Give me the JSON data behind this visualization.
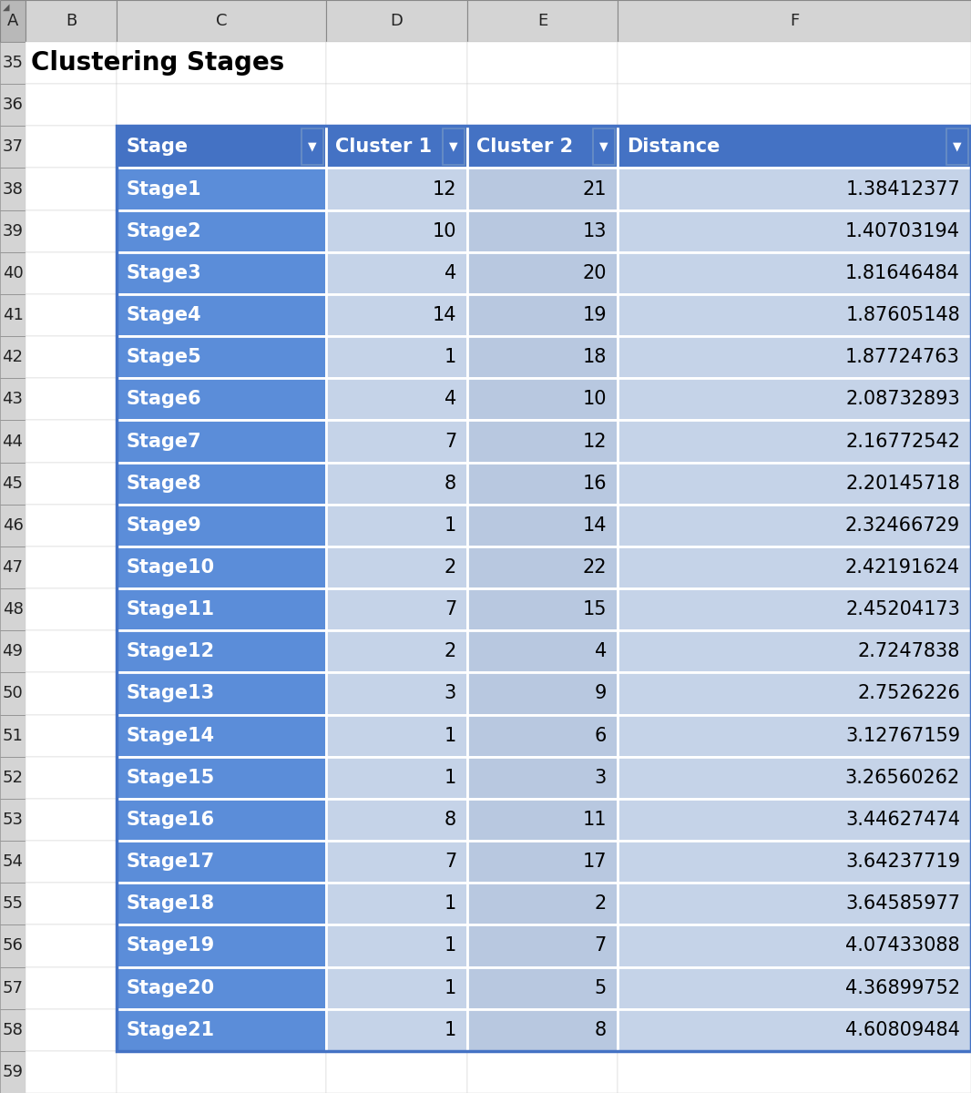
{
  "title": "Clustering Stages",
  "col_headers": [
    "Stage",
    "Cluster 1",
    "Cluster 2",
    "Distance"
  ],
  "rows": [
    [
      "Stage1",
      "12",
      "21",
      "1.38412377"
    ],
    [
      "Stage2",
      "10",
      "13",
      "1.40703194"
    ],
    [
      "Stage3",
      "4",
      "20",
      "1.81646484"
    ],
    [
      "Stage4",
      "14",
      "19",
      "1.87605148"
    ],
    [
      "Stage5",
      "1",
      "18",
      "1.87724763"
    ],
    [
      "Stage6",
      "4",
      "10",
      "2.08732893"
    ],
    [
      "Stage7",
      "7",
      "12",
      "2.16772542"
    ],
    [
      "Stage8",
      "8",
      "16",
      "2.20145718"
    ],
    [
      "Stage9",
      "1",
      "14",
      "2.32466729"
    ],
    [
      "Stage10",
      "2",
      "22",
      "2.42191624"
    ],
    [
      "Stage11",
      "7",
      "15",
      "2.45204173"
    ],
    [
      "Stage12",
      "2",
      "4",
      "2.7247838"
    ],
    [
      "Stage13",
      "3",
      "9",
      "2.7526226"
    ],
    [
      "Stage14",
      "1",
      "6",
      "3.12767159"
    ],
    [
      "Stage15",
      "1",
      "3",
      "3.26560262"
    ],
    [
      "Stage16",
      "8",
      "11",
      "3.44627474"
    ],
    [
      "Stage17",
      "7",
      "17",
      "3.64237719"
    ],
    [
      "Stage18",
      "1",
      "2",
      "3.64585977"
    ],
    [
      "Stage19",
      "1",
      "7",
      "4.07433088"
    ],
    [
      "Stage20",
      "1",
      "5",
      "4.36899752"
    ],
    [
      "Stage21",
      "1",
      "8",
      "4.60809484"
    ]
  ],
  "header_bg": "#4472C4",
  "header_text": "#FFFFFF",
  "stage_col_bg": "#5B8DD9",
  "stage_col_text": "#FFFFFF",
  "data_col_bg_light": "#C5D3E8",
  "data_col_bg_medium": "#B8C8E0",
  "row_line_color": "#FFFFFF",
  "spreadsheet_bg": "#FFFFFF",
  "excel_col_names": [
    "A",
    "B",
    "C",
    "D",
    "E",
    "F"
  ],
  "col_header_bg": "#D4D4D4",
  "col_header_bg_a": "#B8B8B8",
  "row_header_bg": "#D4D4D4",
  "title_fontsize": 20,
  "header_fontsize": 15,
  "data_fontsize": 15,
  "excel_label_fontsize": 13
}
